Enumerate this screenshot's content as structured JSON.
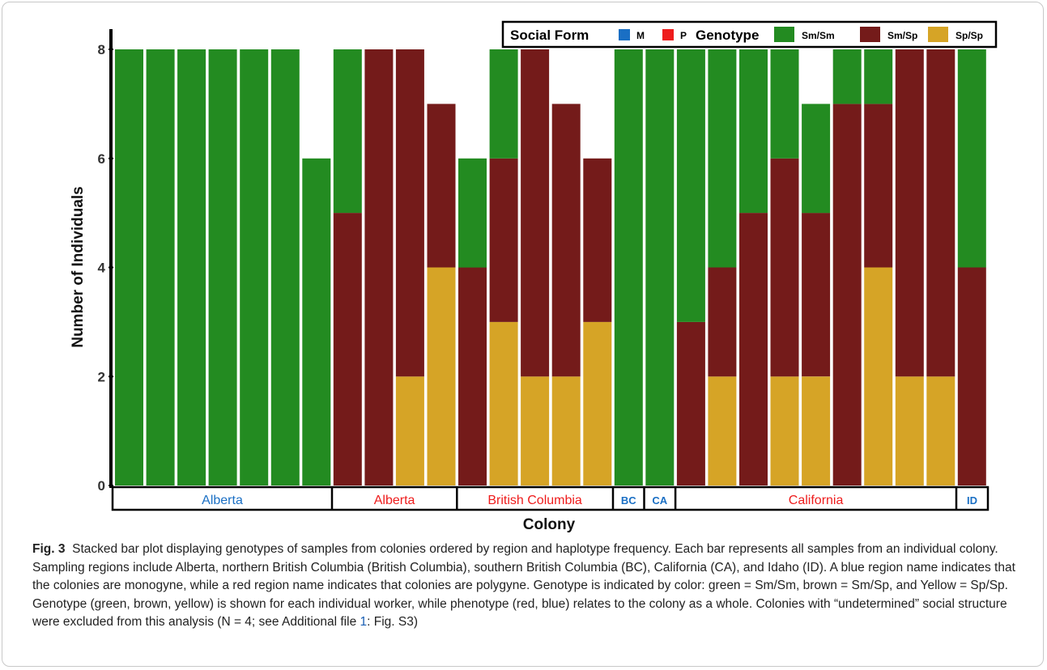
{
  "chart_data": {
    "type": "bar",
    "stacked": true,
    "xlabel": "Colony",
    "ylabel": "Number of Individuals",
    "ylim": [
      0,
      8
    ],
    "yticks": [
      0,
      2,
      4,
      6,
      8
    ],
    "grid": false,
    "legend": {
      "placement": "top-right",
      "social_form_title": "Social Form",
      "social_forms": [
        {
          "label": "M",
          "color": "#1a6fc4"
        },
        {
          "label": "P",
          "color": "#ee1c1c"
        }
      ],
      "genotype_title": "Genotype",
      "genotypes": [
        {
          "label": "Sm/Sm",
          "color": "#238b21"
        },
        {
          "label": "Sm/Sp",
          "color": "#741b1a"
        },
        {
          "label": "Sp/Sp",
          "color": "#d6a426"
        }
      ]
    },
    "series_order_bottom_to_top": [
      "Sp/Sp",
      "Sm/Sp",
      "Sm/Sm"
    ],
    "colonies": [
      {
        "sm_sm": 8,
        "sm_sp": 0,
        "sp_sp": 0
      },
      {
        "sm_sm": 8,
        "sm_sp": 0,
        "sp_sp": 0
      },
      {
        "sm_sm": 8,
        "sm_sp": 0,
        "sp_sp": 0
      },
      {
        "sm_sm": 8,
        "sm_sp": 0,
        "sp_sp": 0
      },
      {
        "sm_sm": 8,
        "sm_sp": 0,
        "sp_sp": 0
      },
      {
        "sm_sm": 8,
        "sm_sp": 0,
        "sp_sp": 0
      },
      {
        "sm_sm": 6,
        "sm_sp": 0,
        "sp_sp": 0
      },
      {
        "sm_sm": 3,
        "sm_sp": 5,
        "sp_sp": 0
      },
      {
        "sm_sm": 0,
        "sm_sp": 8,
        "sp_sp": 0
      },
      {
        "sm_sm": 0,
        "sm_sp": 6,
        "sp_sp": 2
      },
      {
        "sm_sm": 0,
        "sm_sp": 3,
        "sp_sp": 4
      },
      {
        "sm_sm": 2,
        "sm_sp": 4,
        "sp_sp": 0
      },
      {
        "sm_sm": 2,
        "sm_sp": 3,
        "sp_sp": 3
      },
      {
        "sm_sm": 0,
        "sm_sp": 6,
        "sp_sp": 2
      },
      {
        "sm_sm": 0,
        "sm_sp": 5,
        "sp_sp": 2
      },
      {
        "sm_sm": 0,
        "sm_sp": 3,
        "sp_sp": 3
      },
      {
        "sm_sm": 8,
        "sm_sp": 0,
        "sp_sp": 0
      },
      {
        "sm_sm": 8,
        "sm_sp": 0,
        "sp_sp": 0
      },
      {
        "sm_sm": 5,
        "sm_sp": 3,
        "sp_sp": 0
      },
      {
        "sm_sm": 4,
        "sm_sp": 2,
        "sp_sp": 2
      },
      {
        "sm_sm": 3,
        "sm_sp": 5,
        "sp_sp": 0
      },
      {
        "sm_sm": 2,
        "sm_sp": 4,
        "sp_sp": 2
      },
      {
        "sm_sm": 2,
        "sm_sp": 3,
        "sp_sp": 2
      },
      {
        "sm_sm": 1,
        "sm_sp": 7,
        "sp_sp": 0
      },
      {
        "sm_sm": 1,
        "sm_sp": 3,
        "sp_sp": 4
      },
      {
        "sm_sm": 0,
        "sm_sp": 6,
        "sp_sp": 2
      },
      {
        "sm_sm": 0,
        "sm_sp": 6,
        "sp_sp": 2
      },
      {
        "sm_sm": 4,
        "sm_sp": 4,
        "sp_sp": 0
      }
    ],
    "regions": [
      {
        "label": "Alberta",
        "social_form": "M",
        "color": "#1a6fc4",
        "count": 7
      },
      {
        "label": "Alberta",
        "social_form": "P",
        "color": "#ee1c1c",
        "count": 4
      },
      {
        "label": "British Columbia",
        "social_form": "P",
        "color": "#ee1c1c",
        "count": 5
      },
      {
        "label": "BC",
        "social_form": "M",
        "color": "#1a6fc4",
        "count": 1
      },
      {
        "label": "CA",
        "social_form": "M",
        "color": "#1a6fc4",
        "count": 1
      },
      {
        "label": "California",
        "social_form": "P",
        "color": "#ee1c1c",
        "count": 9
      },
      {
        "label": "ID",
        "social_form": "M",
        "color": "#1a6fc4",
        "count": 1
      }
    ]
  },
  "caption": {
    "fig_label": "Fig. 3",
    "text_before_link": "Stacked bar plot displaying genotypes of samples from colonies ordered by region and haplotype frequency. Each bar represents all samples from an individual colony. Sampling regions include Alberta, northern British Columbia (British Columbia), southern British Columbia (BC), California (CA), and Idaho (ID). A blue region name indicates that the colonies are monogyne, while a red region name indicates that colonies are polygyne. Genotype is indicated by color: green = Sm/Sm, brown = Sm/Sp, and Yellow = Sp/Sp. Genotype (green, brown, yellow) is shown for each individual worker, while phenotype (red, blue) relates to the colony as a whole. Colonies with “undetermined” social structure were excluded from this analysis (N = 4; see Additional file ",
    "link_text": "1",
    "text_after_link": ": Fig. S3)"
  }
}
